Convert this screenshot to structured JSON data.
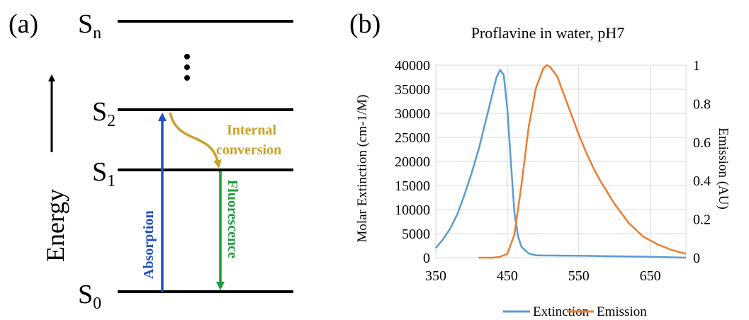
{
  "panel_a": {
    "label": "(a)",
    "energy_label": "Energy",
    "levels": [
      {
        "name": "S",
        "sub": "n"
      },
      {
        "name": "S",
        "sub": "2"
      },
      {
        "name": "S",
        "sub": "1"
      },
      {
        "name": "S",
        "sub": "0"
      }
    ],
    "absorption_label": "Absorption",
    "fluorescence_label": "Fluorescence",
    "internal_conversion_line1": "Internal",
    "internal_conversion_line2": "conversion",
    "colors": {
      "absorption": "#1f4fc4",
      "fluorescence": "#1e9a3c",
      "internal": "#c9a227",
      "level": "#000000"
    }
  },
  "panel_b": {
    "label": "(b)"
  },
  "chart_data": {
    "type": "line",
    "title": "Proflavine in water, pH7",
    "xlabel": "",
    "ylabel": "Molar Extinction (cm-1/M)",
    "y2label": "Emission (AU)",
    "xlim": [
      350,
      700
    ],
    "ylim": [
      0,
      40000
    ],
    "y2lim": [
      0,
      1
    ],
    "xticks": [
      "350",
      "450",
      "550",
      "650"
    ],
    "xtick_values": [
      350,
      450,
      550,
      650
    ],
    "yticks": [
      "0",
      "5000",
      "10000",
      "15000",
      "20000",
      "25000",
      "30000",
      "35000",
      "40000"
    ],
    "ytick_values": [
      0,
      5000,
      10000,
      15000,
      20000,
      25000,
      30000,
      35000,
      40000
    ],
    "y2ticks": [
      "0",
      "0.2",
      "0.4",
      "0.6",
      "0.8",
      "1"
    ],
    "y2tick_values": [
      0,
      0.2,
      0.4,
      0.6,
      0.8,
      1
    ],
    "grid": true,
    "legend_position": "bottom",
    "series": [
      {
        "name": "Extinction",
        "axis": "left",
        "color": "#5b9bd5",
        "x": [
          350,
          360,
          370,
          380,
          390,
          400,
          410,
          420,
          430,
          435,
          440,
          445,
          450,
          455,
          460,
          465,
          470,
          480,
          490,
          500,
          550,
          600,
          650,
          700
        ],
        "y": [
          2000,
          3800,
          6000,
          9000,
          13000,
          17500,
          22500,
          28500,
          34500,
          37500,
          39000,
          38000,
          31000,
          20000,
          9500,
          4500,
          2200,
          900,
          500,
          450,
          400,
          300,
          200,
          0
        ]
      },
      {
        "name": "Emission",
        "axis": "right",
        "color": "#ed7d31",
        "x": [
          410,
          430,
          440,
          450,
          460,
          470,
          480,
          490,
          500,
          505,
          510,
          520,
          530,
          540,
          550,
          560,
          570,
          580,
          600,
          620,
          640,
          660,
          680,
          700
        ],
        "y": [
          0,
          0,
          0.005,
          0.02,
          0.12,
          0.38,
          0.68,
          0.88,
          0.98,
          1.0,
          0.99,
          0.94,
          0.84,
          0.74,
          0.64,
          0.55,
          0.47,
          0.4,
          0.28,
          0.18,
          0.11,
          0.07,
          0.04,
          0.02
        ]
      }
    ]
  }
}
